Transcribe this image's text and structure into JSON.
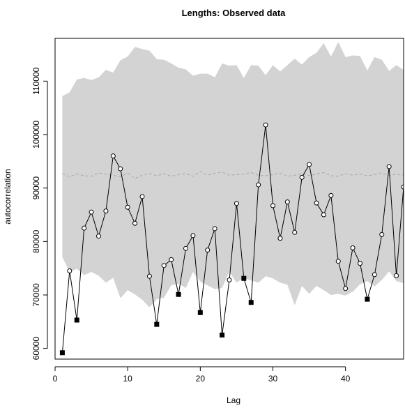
{
  "chart_data": {
    "type": "line",
    "title": "Lengths: Observed data",
    "xlabel": "Lag",
    "ylabel": "autocorrelation",
    "xlim": [
      0,
      48
    ],
    "ylim": [
      58000,
      118000
    ],
    "x_ticks": [
      0,
      10,
      20,
      30,
      40
    ],
    "y_ticks": [
      60000,
      70000,
      80000,
      90000,
      100000,
      110000
    ],
    "grid": false,
    "legend": "none",
    "colors": {
      "band_fill": "#d3d3d3",
      "mean_line": "#a8a8a8",
      "series_line": "#000000",
      "frame": "#000000"
    },
    "series": [
      {
        "x": [
          1,
          2,
          3,
          4,
          5,
          6,
          7,
          8,
          9,
          10,
          11,
          12,
          13,
          14,
          15,
          16,
          17,
          18,
          19,
          20,
          21,
          22,
          23,
          24,
          25,
          26,
          27,
          28,
          29,
          30,
          31,
          32,
          33,
          34,
          35,
          36,
          37,
          38,
          39,
          40,
          41,
          42,
          43,
          44,
          45,
          46,
          47,
          48
        ],
        "values": [
          59200,
          74500,
          65300,
          82500,
          85500,
          81000,
          85700,
          96000,
          93600,
          86400,
          83400,
          88400,
          73500,
          64500,
          75500,
          76600,
          70100,
          78700,
          81100,
          66700,
          78400,
          82400,
          62500,
          72800,
          87100,
          73100,
          68600,
          90600,
          101800,
          86700,
          80600,
          87400,
          81700,
          92000,
          94400,
          87200,
          85000,
          88600,
          76300,
          71200,
          78800,
          75900,
          69200,
          73800,
          81300,
          94000,
          73600,
          90200
        ],
        "markers": [
          "filled",
          "open",
          "filled",
          "open",
          "open",
          "open",
          "open",
          "open",
          "open",
          "open",
          "open",
          "open",
          "open",
          "filled",
          "open",
          "open",
          "filled",
          "open",
          "open",
          "filled",
          "open",
          "open",
          "filled",
          "open",
          "open",
          "filled",
          "filled",
          "open",
          "open",
          "open",
          "open",
          "open",
          "open",
          "open",
          "open",
          "open",
          "open",
          "open",
          "open",
          "open",
          "open",
          "open",
          "filled",
          "open",
          "open",
          "open",
          "open",
          "open"
        ]
      }
    ],
    "envelope": {
      "x": [
        1,
        2,
        3,
        4,
        5,
        6,
        7,
        8,
        9,
        10,
        11,
        12,
        13,
        14,
        15,
        16,
        17,
        18,
        19,
        20,
        21,
        22,
        23,
        24,
        25,
        26,
        27,
        28,
        29,
        30,
        31,
        32,
        33,
        34,
        35,
        36,
        37,
        38,
        39,
        40,
        41,
        42,
        43,
        44,
        45,
        46,
        47,
        48
      ],
      "upper": [
        107200,
        107900,
        110300,
        110600,
        110200,
        110700,
        112100,
        111600,
        113900,
        114600,
        116400,
        116000,
        115700,
        114100,
        114000,
        113300,
        112500,
        112200,
        111000,
        111400,
        111400,
        110700,
        113300,
        112900,
        113000,
        110600,
        113000,
        112900,
        111100,
        113000,
        111800,
        113000,
        114200,
        113100,
        114500,
        115300,
        117100,
        114600,
        117300,
        114500,
        114800,
        114700,
        112000,
        114500,
        114000,
        111900,
        113000,
        112100
      ],
      "lower": [
        77100,
        74300,
        74900,
        73700,
        74300,
        73600,
        72300,
        73200,
        69400,
        70900,
        70100,
        69100,
        67700,
        69200,
        69500,
        71800,
        72100,
        71300,
        74300,
        72500,
        71800,
        71100,
        71300,
        74300,
        72300,
        73200,
        72700,
        72300,
        73500,
        73100,
        72300,
        71900,
        68100,
        71700,
        70200,
        71700,
        70900,
        70000,
        70200,
        69900,
        70600,
        72000,
        72600,
        71600,
        72800,
        74400,
        72600,
        72200
      ],
      "mean": [
        92700,
        92100,
        92600,
        92300,
        92200,
        92800,
        92600,
        92400,
        92100,
        92800,
        91800,
        92400,
        92700,
        92300,
        92700,
        92200,
        92500,
        92700,
        92200,
        93100,
        92400,
        92800,
        93000,
        92400,
        92500,
        92600,
        92900,
        92400,
        92300,
        92500,
        92800,
        92200,
        92400,
        92700,
        92300,
        92600,
        92900,
        92300,
        92200,
        92700,
        92400,
        92600,
        92300,
        92500,
        92800,
        92300,
        92600,
        92400
      ]
    }
  }
}
